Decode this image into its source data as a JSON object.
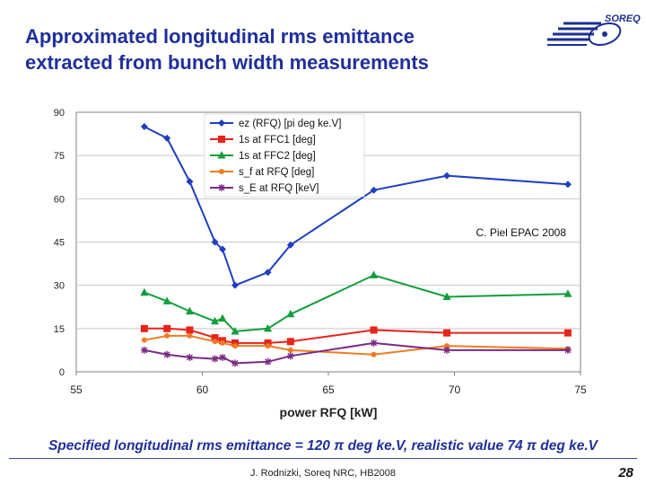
{
  "slide": {
    "title_line1": "Approximated longitudinal rms emittance",
    "title_line2": "extracted from bunch width measurements",
    "logo_text": "SOREQ",
    "note_prefix": "Specified longitudinal rms emittance = 120 ",
    "note_mid": " deg ke.V, realistic value 74 ",
    "note_suffix": " deg ke.V",
    "pi_symbol": "π",
    "source": "J. Rodnizki, Soreq NRC, HB2008",
    "page_number": "28"
  },
  "chart_data": {
    "type": "line",
    "title": "",
    "xlabel": "power RFQ [kW]",
    "ylabel": "",
    "xlim": [
      55,
      75
    ],
    "ylim": [
      0,
      90
    ],
    "x_ticks": [
      55,
      60,
      65,
      70,
      75
    ],
    "y_ticks": [
      0,
      15,
      30,
      45,
      60,
      75,
      90
    ],
    "annotation": "C. Piel EPAC 2008",
    "legend_position": "top-left",
    "series": [
      {
        "name": "ez (RFQ) [pi deg ke.V]",
        "color": "#1f3fbf",
        "marker": "diamond",
        "points": [
          [
            57.7,
            85
          ],
          [
            58.6,
            81
          ],
          [
            59.5,
            66
          ],
          [
            60.5,
            45
          ],
          [
            60.8,
            42.5
          ],
          [
            61.3,
            30
          ],
          [
            62.6,
            34.5
          ],
          [
            63.5,
            44
          ],
          [
            66.8,
            63
          ],
          [
            69.7,
            68
          ],
          [
            74.5,
            65
          ]
        ]
      },
      {
        "name": "1s at FFC1 [deg]",
        "color": "#e8231b",
        "marker": "square",
        "points": [
          [
            57.7,
            15
          ],
          [
            58.6,
            15
          ],
          [
            59.5,
            14.5
          ],
          [
            60.5,
            11.8
          ],
          [
            60.8,
            10.8
          ],
          [
            61.3,
            10
          ],
          [
            62.6,
            10
          ],
          [
            63.5,
            10.5
          ],
          [
            66.8,
            14.5
          ],
          [
            69.7,
            13.5
          ],
          [
            74.5,
            13.5
          ]
        ]
      },
      {
        "name": "1s at FFC2 [deg]",
        "color": "#129e3c",
        "marker": "triangle",
        "points": [
          [
            57.7,
            27.5
          ],
          [
            58.6,
            24.5
          ],
          [
            59.5,
            21
          ],
          [
            60.5,
            17.5
          ],
          [
            60.8,
            18.5
          ],
          [
            61.3,
            14
          ],
          [
            62.6,
            15
          ],
          [
            63.5,
            20
          ],
          [
            66.8,
            33.5
          ],
          [
            69.7,
            26
          ],
          [
            74.5,
            27
          ]
        ]
      },
      {
        "name": "s_f at RFQ [deg]",
        "color": "#f07c22",
        "marker": "circle",
        "points": [
          [
            57.7,
            11
          ],
          [
            58.6,
            12.5
          ],
          [
            59.5,
            12.5
          ],
          [
            60.5,
            10.5
          ],
          [
            60.8,
            10
          ],
          [
            61.3,
            9
          ],
          [
            62.6,
            9
          ],
          [
            63.5,
            7.5
          ],
          [
            66.8,
            6
          ],
          [
            69.7,
            9
          ],
          [
            74.5,
            8
          ]
        ]
      },
      {
        "name": "s_E at RFQ [keV]",
        "color": "#7a2a82",
        "marker": "star",
        "points": [
          [
            57.7,
            7.5
          ],
          [
            58.6,
            6
          ],
          [
            59.5,
            5
          ],
          [
            60.5,
            4.5
          ],
          [
            60.8,
            5
          ],
          [
            61.3,
            3
          ],
          [
            62.6,
            3.5
          ],
          [
            63.5,
            5.5
          ],
          [
            66.8,
            10
          ],
          [
            69.7,
            7.5
          ],
          [
            74.5,
            7.5
          ]
        ]
      }
    ]
  }
}
